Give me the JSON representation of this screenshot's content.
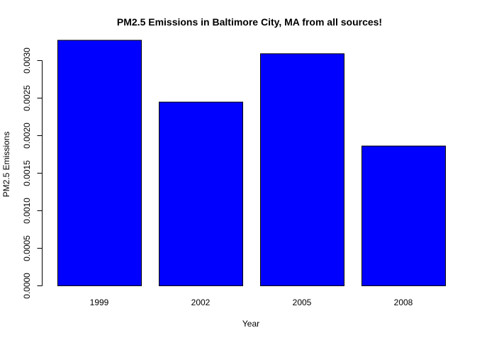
{
  "chart_data": {
    "type": "bar",
    "title": "PM2.5 Emissions in Baltimore City, MA from all sources!",
    "xlabel": "Year",
    "ylabel": "PM2.5 Emissions",
    "categories": [
      "1999",
      "2002",
      "2005",
      "2008"
    ],
    "values": [
      0.00327,
      0.002447,
      0.003091,
      0.001862
    ],
    "ylim": [
      0,
      0.0032
    ],
    "yticks": [
      0.0,
      0.0005,
      0.001,
      0.0015,
      0.002,
      0.0025,
      0.003
    ],
    "ytick_labels": [
      "0.0000",
      "0.0005",
      "0.0010",
      "0.0015",
      "0.0020",
      "0.0025",
      "0.0030"
    ],
    "bar_color": "#0000ff",
    "grid": false,
    "legend": "none"
  }
}
